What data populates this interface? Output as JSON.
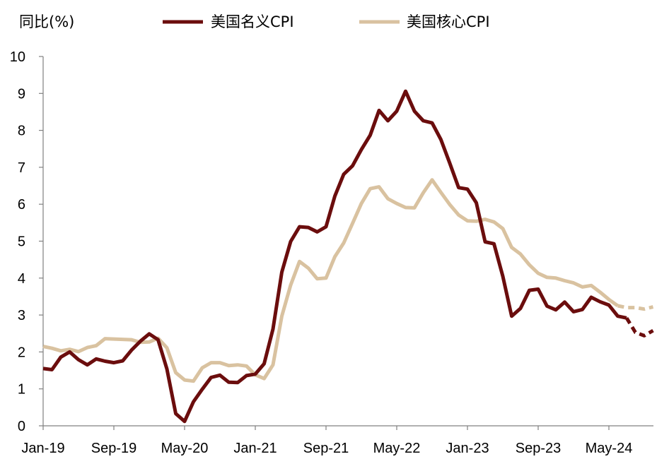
{
  "chart_data": {
    "type": "line",
    "title": "",
    "ylabel": "同比(%)",
    "xlabel": "",
    "ylim": [
      0,
      10
    ],
    "yticks": [
      0,
      1,
      2,
      3,
      4,
      5,
      6,
      7,
      8,
      9,
      10
    ],
    "x_tick_labels": [
      "Jan-19",
      "Sep-19",
      "May-20",
      "Jan-21",
      "Sep-21",
      "May-22",
      "Jan-23",
      "Sep-23",
      "May-24"
    ],
    "x": [
      "Jan-19",
      "Feb-19",
      "Mar-19",
      "Apr-19",
      "May-19",
      "Jun-19",
      "Jul-19",
      "Aug-19",
      "Sep-19",
      "Oct-19",
      "Nov-19",
      "Dec-19",
      "Jan-20",
      "Feb-20",
      "Mar-20",
      "Apr-20",
      "May-20",
      "Jun-20",
      "Jul-20",
      "Aug-20",
      "Sep-20",
      "Oct-20",
      "Nov-20",
      "Dec-20",
      "Jan-21",
      "Feb-21",
      "Mar-21",
      "Apr-21",
      "May-21",
      "Jun-21",
      "Jul-21",
      "Aug-21",
      "Sep-21",
      "Oct-21",
      "Nov-21",
      "Dec-21",
      "Jan-22",
      "Feb-22",
      "Mar-22",
      "Apr-22",
      "May-22",
      "Jun-22",
      "Jul-22",
      "Aug-22",
      "Sep-22",
      "Oct-22",
      "Nov-22",
      "Dec-22",
      "Jan-23",
      "Feb-23",
      "Mar-23",
      "Apr-23",
      "May-23",
      "Jun-23",
      "Jul-23",
      "Aug-23",
      "Sep-23",
      "Oct-23",
      "Nov-23",
      "Dec-23",
      "Jan-24",
      "Feb-24",
      "Mar-24",
      "Apr-24",
      "May-24",
      "Jun-24",
      "Jul-24",
      "Aug-24",
      "Sep-24",
      "Oct-24",
      "Nov-24",
      "Dec-24"
    ],
    "legend_position": "top",
    "grid": false,
    "series": [
      {
        "name": "美国名义CPI",
        "color": "#6b0d0d",
        "solid_until_index": 66,
        "values": [
          1.55,
          1.52,
          1.86,
          2.0,
          1.79,
          1.65,
          1.81,
          1.75,
          1.71,
          1.76,
          2.05,
          2.29,
          2.49,
          2.33,
          1.54,
          0.33,
          0.12,
          0.65,
          0.99,
          1.31,
          1.37,
          1.18,
          1.17,
          1.36,
          1.4,
          1.68,
          2.62,
          4.16,
          4.99,
          5.39,
          5.37,
          5.25,
          5.39,
          6.22,
          6.81,
          7.04,
          7.48,
          7.87,
          8.54,
          8.26,
          8.52,
          9.06,
          8.52,
          8.26,
          8.2,
          7.75,
          7.11,
          6.45,
          6.41,
          6.04,
          4.98,
          4.93,
          4.05,
          2.97,
          3.18,
          3.67,
          3.7,
          3.24,
          3.14,
          3.35,
          3.09,
          3.15,
          3.48,
          3.36,
          3.27,
          2.97,
          2.92,
          2.53,
          2.44,
          2.58,
          2.7,
          2.83
        ]
      },
      {
        "name": "美国核心CPI",
        "color": "#d9c2a0",
        "solid_until_index": 65,
        "values": [
          2.15,
          2.1,
          2.03,
          2.07,
          2.01,
          2.12,
          2.17,
          2.36,
          2.35,
          2.34,
          2.33,
          2.26,
          2.27,
          2.37,
          2.11,
          1.44,
          1.24,
          1.21,
          1.57,
          1.71,
          1.71,
          1.63,
          1.65,
          1.62,
          1.38,
          1.28,
          1.65,
          2.97,
          3.81,
          4.45,
          4.27,
          3.98,
          4.0,
          4.58,
          4.95,
          5.48,
          6.02,
          6.42,
          6.47,
          6.15,
          6.02,
          5.91,
          5.9,
          6.31,
          6.66,
          6.32,
          5.99,
          5.71,
          5.55,
          5.54,
          5.59,
          5.52,
          5.34,
          4.83,
          4.65,
          4.36,
          4.13,
          4.02,
          4.0,
          3.93,
          3.87,
          3.76,
          3.8,
          3.62,
          3.42,
          3.25,
          3.2,
          3.2,
          3.16,
          3.22,
          3.3,
          3.2
        ]
      }
    ]
  }
}
